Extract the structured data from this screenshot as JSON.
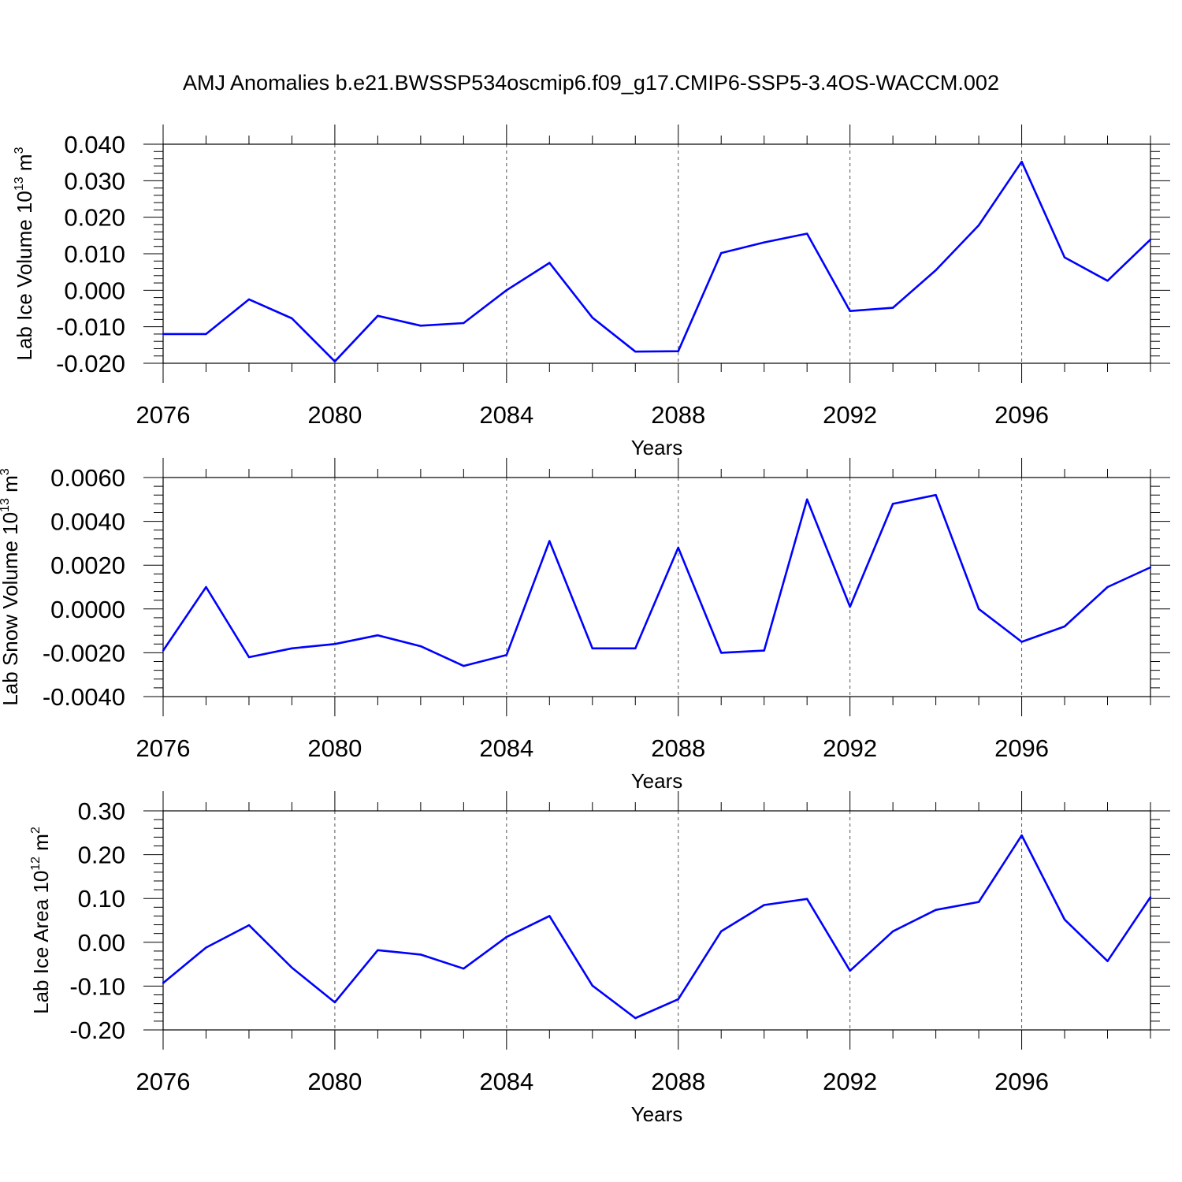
{
  "title": "AMJ Anomalies b.e21.BWSSP534oscmip6.f09_g17.CMIP6-SSP5-3.4OS-WACCM.002",
  "line_color": "#0000ff",
  "chart_data": [
    {
      "type": "line",
      "title": "",
      "xlabel": "Years",
      "ylabel": "Lab Ice Volume 10",
      "ylabel_exp": "13",
      "ylabel_unit": " m",
      "ylabel_unit_exp": "3",
      "xlim": [
        2076,
        2099
      ],
      "ylim": [
        -0.02,
        0.04
      ],
      "xticks": [
        "2076",
        "2080",
        "2084",
        "2088",
        "2092",
        "2096"
      ],
      "yticks": [
        "-0.020",
        "-0.010",
        "0.000",
        "0.010",
        "0.020",
        "0.030",
        "0.040"
      ],
      "x": [
        2076,
        2077,
        2078,
        2079,
        2080,
        2081,
        2082,
        2083,
        2084,
        2085,
        2086,
        2087,
        2088,
        2089,
        2090,
        2091,
        2092,
        2093,
        2094,
        2095,
        2096,
        2097,
        2098,
        2099
      ],
      "series": [
        {
          "name": "Lab Ice Volume",
          "values": [
            -0.012,
            -0.012,
            -0.0025,
            -0.0077,
            -0.0195,
            -0.007,
            -0.0097,
            -0.009,
            0.0,
            0.0075,
            -0.0075,
            -0.0168,
            -0.0167,
            0.0102,
            0.0131,
            0.0155,
            -0.0057,
            -0.0048,
            0.0055,
            0.0178,
            0.0352,
            0.009,
            0.0026,
            0.0139
          ]
        }
      ]
    },
    {
      "type": "line",
      "title": "",
      "xlabel": "Years",
      "ylabel": "Lab Snow Volume 10",
      "ylabel_exp": "13",
      "ylabel_unit": " m",
      "ylabel_unit_exp": "3",
      "xlim": [
        2076,
        2099
      ],
      "ylim": [
        -0.004,
        0.006
      ],
      "xticks": [
        "2076",
        "2080",
        "2084",
        "2088",
        "2092",
        "2096"
      ],
      "yticks": [
        "-0.0040",
        "-0.0020",
        "0.0000",
        "0.0020",
        "0.0040",
        "0.0060"
      ],
      "x": [
        2076,
        2077,
        2078,
        2079,
        2080,
        2081,
        2082,
        2083,
        2084,
        2085,
        2086,
        2087,
        2088,
        2089,
        2090,
        2091,
        2092,
        2093,
        2094,
        2095,
        2096,
        2097,
        2098,
        2099
      ],
      "series": [
        {
          "name": "Lab Snow Volume",
          "values": [
            -0.0019,
            0.001,
            -0.0022,
            -0.0018,
            -0.0016,
            -0.0012,
            -0.0017,
            -0.0026,
            -0.0021,
            0.0031,
            -0.0018,
            -0.0018,
            0.0028,
            -0.002,
            -0.0019,
            0.005,
            0.0001,
            0.0048,
            0.0052,
            0.0,
            -0.0015,
            -0.0008,
            0.001,
            0.0019
          ]
        }
      ]
    },
    {
      "type": "line",
      "title": "",
      "xlabel": "Years",
      "ylabel": "Lab Ice Area 10",
      "ylabel_exp": "12",
      "ylabel_unit": " m",
      "ylabel_unit_exp": "2",
      "xlim": [
        2076,
        2099
      ],
      "ylim": [
        -0.2,
        0.3
      ],
      "xticks": [
        "2076",
        "2080",
        "2084",
        "2088",
        "2092",
        "2096"
      ],
      "yticks": [
        "-0.20",
        "-0.10",
        "0.00",
        "0.10",
        "0.20",
        "0.30"
      ],
      "x": [
        2076,
        2077,
        2078,
        2079,
        2080,
        2081,
        2082,
        2083,
        2084,
        2085,
        2086,
        2087,
        2088,
        2089,
        2090,
        2091,
        2092,
        2093,
        2094,
        2095,
        2096,
        2097,
        2098,
        2099
      ],
      "series": [
        {
          "name": "Lab Ice Area",
          "values": [
            -0.093,
            -0.012,
            0.039,
            -0.058,
            -0.137,
            -0.018,
            -0.028,
            -0.06,
            0.012,
            0.06,
            -0.099,
            -0.173,
            -0.13,
            0.025,
            0.085,
            0.099,
            -0.065,
            0.025,
            0.074,
            0.092,
            0.244,
            0.052,
            -0.043,
            0.103
          ]
        }
      ]
    }
  ]
}
